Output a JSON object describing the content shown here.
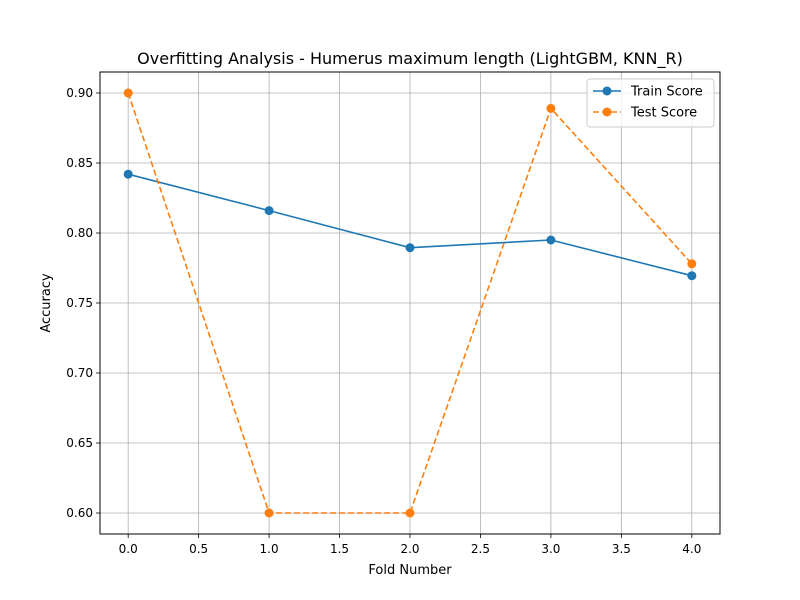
{
  "chart_data": {
    "type": "line",
    "title": "Overfitting Analysis - Humerus maximum length (LightGBM, KNN_R)",
    "xlabel": "Fold Number",
    "ylabel": "Accuracy",
    "x": [
      0,
      1,
      2,
      3,
      4
    ],
    "xlim": [
      -0.2,
      4.2
    ],
    "ylim": [
      0.585,
      0.915
    ],
    "xticks": [
      "0.0",
      "0.5",
      "1.0",
      "1.5",
      "2.0",
      "2.5",
      "3.0",
      "3.5",
      "4.0"
    ],
    "yticks": [
      "0.60",
      "0.65",
      "0.70",
      "0.75",
      "0.80",
      "0.85",
      "0.90"
    ],
    "grid": true,
    "legend_position": "top-right",
    "series": [
      {
        "name": "Train Score",
        "values": [
          0.842,
          0.816,
          0.7895,
          0.795,
          0.7695
        ],
        "color": "#1f77b4",
        "linestyle": "solid",
        "marker": "circle"
      },
      {
        "name": "Test Score",
        "values": [
          0.9,
          0.6,
          0.6,
          0.889,
          0.778
        ],
        "color": "#ff7f0e",
        "linestyle": "dashed",
        "marker": "circle"
      }
    ]
  }
}
